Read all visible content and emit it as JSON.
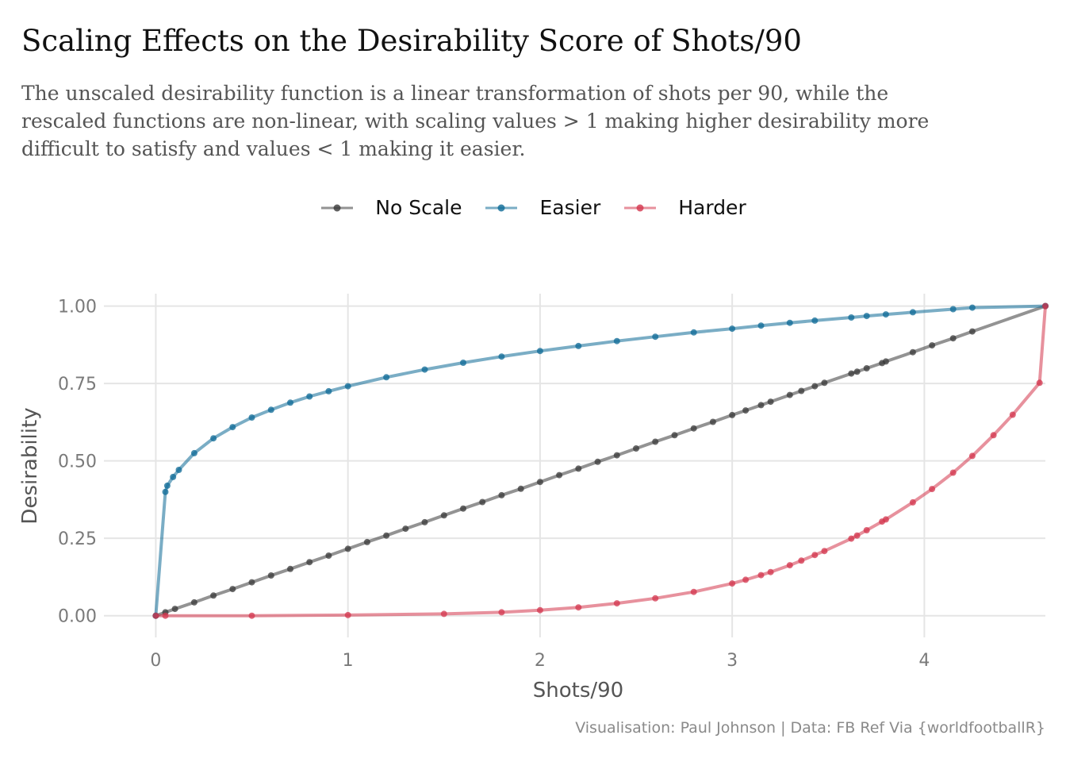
{
  "title": "Scaling Effects on the Desirability Score of Shots/90",
  "subtitle_lines": [
    "The unscaled desirability function is a linear transformation of shots per 90, while the",
    "rescaled functions are non-linear, with scaling values > 1 making higher desirability more",
    "difficult to satisfy and values < 1 making it easier."
  ],
  "caption": "Visualisation: Paul Johnson  |  Data: FB Ref Via {worldfootballR}",
  "colors": {
    "no_scale": "#3a3a3a",
    "easier": "#0d6a96",
    "harder": "#d3364d",
    "grid": "#e5e5e5",
    "tick_text": "#7a7a7a",
    "axis_title": "#555555"
  },
  "chart_data": {
    "type": "line",
    "title": "Scaling Effects on the Desirability Score of Shots/90",
    "xlabel": "Shots/90",
    "ylabel": "Desirability",
    "xlim": [
      -0.27,
      4.63
    ],
    "ylim": [
      -0.07,
      1.04
    ],
    "x_ticks": [
      0,
      1,
      2,
      3,
      4
    ],
    "x_tick_labels": [
      "0",
      "1",
      "2",
      "3",
      "4"
    ],
    "y_ticks": [
      0,
      0.25,
      0.5,
      0.75,
      1
    ],
    "y_tick_labels": [
      "0.00",
      "0.25",
      "0.50",
      "0.75",
      "1.00"
    ],
    "grid": true,
    "legend_position": "top",
    "series": [
      {
        "name": "No Scale",
        "color": "#3a3a3a",
        "x": [
          0,
          0.05,
          0.1,
          0.2,
          0.3,
          0.4,
          0.5,
          0.6,
          0.7,
          0.8,
          0.9,
          1.0,
          1.1,
          1.2,
          1.3,
          1.4,
          1.5,
          1.6,
          1.7,
          1.8,
          1.9,
          2.0,
          2.1,
          2.2,
          2.3,
          2.4,
          2.5,
          2.6,
          2.7,
          2.8,
          2.9,
          3.0,
          3.07,
          3.15,
          3.2,
          3.3,
          3.36,
          3.43,
          3.48,
          3.62,
          3.65,
          3.7,
          3.78,
          3.8,
          3.94,
          4.04,
          4.15,
          4.25,
          4.63
        ],
        "y": [
          0,
          0.011,
          0.022,
          0.043,
          0.065,
          0.086,
          0.108,
          0.13,
          0.151,
          0.173,
          0.194,
          0.216,
          0.238,
          0.259,
          0.281,
          0.302,
          0.324,
          0.346,
          0.367,
          0.389,
          0.41,
          0.432,
          0.454,
          0.475,
          0.497,
          0.518,
          0.54,
          0.562,
          0.583,
          0.605,
          0.626,
          0.648,
          0.663,
          0.68,
          0.691,
          0.713,
          0.726,
          0.741,
          0.752,
          0.782,
          0.788,
          0.799,
          0.816,
          0.821,
          0.851,
          0.873,
          0.896,
          0.918,
          1.0
        ]
      },
      {
        "name": "Easier",
        "color": "#0d6a96",
        "x": [
          0,
          0.05,
          0.06,
          0.09,
          0.12,
          0.2,
          0.3,
          0.4,
          0.5,
          0.6,
          0.7,
          0.8,
          0.9,
          1.0,
          1.2,
          1.4,
          1.6,
          1.8,
          2.0,
          2.2,
          2.4,
          2.6,
          2.8,
          3.0,
          3.15,
          3.3,
          3.43,
          3.62,
          3.7,
          3.8,
          3.94,
          4.15,
          4.25,
          4.63
        ],
        "y": [
          0,
          0.4,
          0.42,
          0.448,
          0.471,
          0.525,
          0.573,
          0.609,
          0.64,
          0.665,
          0.688,
          0.708,
          0.725,
          0.741,
          0.77,
          0.795,
          0.817,
          0.837,
          0.855,
          0.871,
          0.887,
          0.901,
          0.915,
          0.927,
          0.937,
          0.946,
          0.953,
          0.963,
          0.968,
          0.973,
          0.98,
          0.99,
          0.995,
          1.0
        ]
      },
      {
        "name": "Harder",
        "color": "#d3364d",
        "x": [
          0,
          0.05,
          0.5,
          1.0,
          1.5,
          1.8,
          2.0,
          2.2,
          2.4,
          2.6,
          2.8,
          3.0,
          3.07,
          3.15,
          3.2,
          3.3,
          3.36,
          3.43,
          3.48,
          3.62,
          3.65,
          3.7,
          3.78,
          3.8,
          3.94,
          4.04,
          4.15,
          4.25,
          4.36,
          4.46,
          4.6,
          4.63
        ],
        "y": [
          0,
          0.0,
          0.0,
          0.002,
          0.006,
          0.011,
          0.018,
          0.027,
          0.04,
          0.056,
          0.077,
          0.104,
          0.116,
          0.131,
          0.141,
          0.163,
          0.178,
          0.196,
          0.209,
          0.249,
          0.259,
          0.276,
          0.304,
          0.311,
          0.366,
          0.409,
          0.462,
          0.516,
          0.583,
          0.649,
          0.752,
          1.0
        ]
      }
    ]
  }
}
